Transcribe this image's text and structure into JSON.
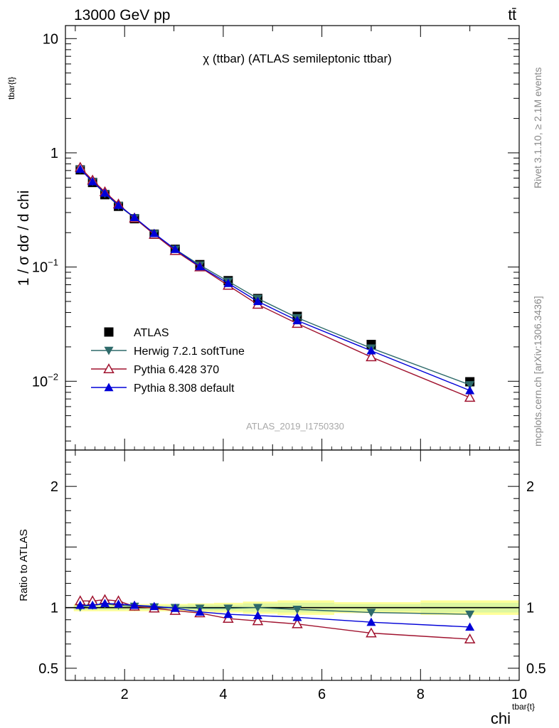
{
  "header": {
    "left": "13000 GeV pp",
    "right": "tt̄"
  },
  "side": {
    "rivet": "Rivet 3.1.10, ≥ 2.1M events",
    "mcplots": "mcplots.cern.ch [arXiv:1306.3436]"
  },
  "colors": {
    "atlas": "#000000",
    "herwig": "#2e6a6a",
    "py6": "#a0122e",
    "py8": "#0000d8",
    "band_inner": "#ddf6a0",
    "band_outer": "#ffff99"
  },
  "chart_data": [
    {
      "type": "line",
      "title": "χ (ttbar) (ATLAS semileptonic ttbar)",
      "watermark": "ATLAS_2019_I1750330",
      "ylabel": "1 / σ dσ / d chi",
      "ylabel_sup": "tbar{t}",
      "yscale": "log",
      "xlim": [
        0.8,
        10
      ],
      "ylim": [
        0.0025,
        13
      ],
      "ytick_labels": [
        "10",
        "1",
        "10^−1",
        "10^−2"
      ],
      "legend_position": "middle-left",
      "x": [
        1.1,
        1.35,
        1.6,
        1.875,
        2.2,
        2.6,
        3.025,
        3.525,
        4.1,
        4.7,
        5.5,
        7.0,
        9.0
      ],
      "series": [
        {
          "name": "ATLAS",
          "marker": "square",
          "values": [
            0.71,
            0.55,
            0.43,
            0.34,
            0.265,
            0.194,
            0.143,
            0.105,
            0.076,
            0.053,
            0.037,
            0.021,
            0.0099
          ]
        },
        {
          "name": "Herwig 7.2.1 softTune",
          "marker": "triangle-down",
          "values": [
            0.72,
            0.56,
            0.44,
            0.345,
            0.27,
            0.196,
            0.143,
            0.104,
            0.075,
            0.053,
            0.036,
            0.0195,
            0.0093
          ]
        },
        {
          "name": "Pythia 6.428 370",
          "marker": "triangle-up-open",
          "values": [
            0.745,
            0.575,
            0.455,
            0.355,
            0.268,
            0.193,
            0.139,
            0.1,
            0.069,
            0.047,
            0.032,
            0.0163,
            0.0072
          ]
        },
        {
          "name": "Pythia 8.308 default",
          "marker": "triangle-up",
          "values": [
            0.72,
            0.56,
            0.445,
            0.348,
            0.272,
            0.197,
            0.143,
            0.101,
            0.072,
            0.05,
            0.034,
            0.0185,
            0.0083
          ]
        }
      ]
    },
    {
      "type": "line",
      "ylabel": "Ratio to ATLAS",
      "xlabel": "chi",
      "xlabel_sup": "tbar{t}",
      "xlim": [
        0.8,
        10
      ],
      "ylim": [
        0.4,
        2.3
      ],
      "xtick_labels": [
        "2",
        "4",
        "6",
        "8",
        "10"
      ],
      "ytick_labels": [
        "2",
        "1",
        "0.5"
      ],
      "x": [
        1.1,
        1.35,
        1.6,
        1.875,
        2.2,
        2.6,
        3.025,
        3.525,
        4.1,
        4.7,
        5.5,
        7.0,
        9.0
      ],
      "band_inner_halfwidth": [
        0.02,
        0.02,
        0.02,
        0.02,
        0.02,
        0.02,
        0.02,
        0.025,
        0.025,
        0.035,
        0.04,
        0.03,
        0.04
      ],
      "band_outer_halfwidth": [
        0.03,
        0.03,
        0.03,
        0.03,
        0.03,
        0.03,
        0.03,
        0.035,
        0.04,
        0.05,
        0.06,
        0.045,
        0.06
      ],
      "series": [
        {
          "name": "Herwig 7.2.1 softTune",
          "marker": "triangle-down",
          "values": [
            1.005,
            1.02,
            1.03,
            1.02,
            1.01,
            1.005,
            1.0,
            0.995,
            0.995,
            1.0,
            0.985,
            0.96,
            0.945
          ]
        },
        {
          "name": "Pythia 6.428 370",
          "marker": "triangle-up-open",
          "values": [
            1.055,
            1.055,
            1.065,
            1.055,
            1.01,
            0.995,
            0.975,
            0.955,
            0.91,
            0.89,
            0.865,
            0.79,
            0.74
          ]
        },
        {
          "name": "Pythia 8.308 default",
          "marker": "triangle-up",
          "values": [
            1.02,
            1.02,
            1.035,
            1.03,
            1.02,
            1.01,
            0.995,
            0.965,
            0.945,
            0.935,
            0.92,
            0.88,
            0.84
          ]
        }
      ]
    }
  ]
}
